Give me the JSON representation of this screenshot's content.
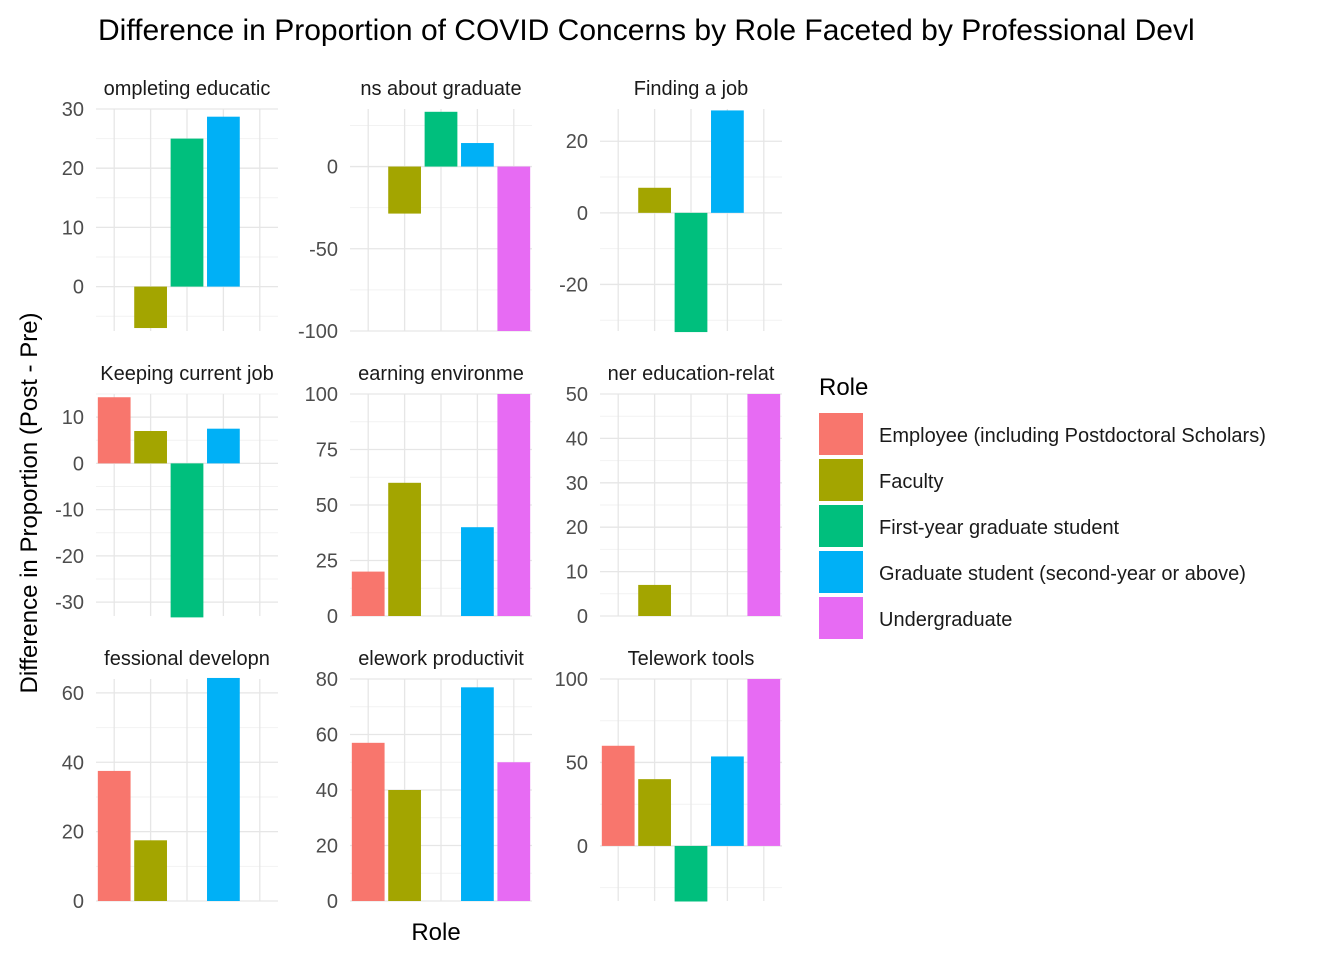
{
  "chart_data": {
    "type": "bar",
    "title": "Difference in Proportion of COVID Concerns by Role Faceted by Professional Devl",
    "xlabel": "Role",
    "ylabel": "Difference in Proportion (Post - Pre)",
    "legend": {
      "title": "Role",
      "placement": "right",
      "entries": [
        "Employee (including Postdoctoral Scholars)",
        "Faculty",
        "First-year graduate student",
        "Graduate student (second-year or above)",
        "Undergraduate"
      ]
    },
    "colors": [
      "#F8766D",
      "#A3A500",
      "#00BF7D",
      "#00B0F6",
      "#E76BF3"
    ],
    "grid": true,
    "facets": [
      {
        "label": "ompleting educatic",
        "ylim": [
          -7.5,
          30
        ],
        "yticks": [
          0,
          10,
          20,
          30
        ],
        "values": [
          null,
          -7,
          25,
          28.7,
          null
        ]
      },
      {
        "label": "ns about graduate",
        "ylim": [
          -100,
          35
        ],
        "yticks": [
          -100,
          -50,
          0
        ],
        "values": [
          null,
          -28.6,
          33.3,
          14.3,
          -100
        ]
      },
      {
        "label": "Finding a job",
        "ylim": [
          -33,
          29
        ],
        "yticks": [
          -20,
          0,
          20
        ],
        "values": [
          null,
          7,
          -33.3,
          28.6,
          null
        ]
      },
      {
        "label": "Keeping current job",
        "ylim": [
          -33,
          15
        ],
        "yticks": [
          -30,
          -20,
          -10,
          0,
          10
        ],
        "values": [
          14.3,
          7,
          -33.3,
          7.5,
          null
        ]
      },
      {
        "label": "earning environme",
        "ylim": [
          0,
          100
        ],
        "yticks": [
          0,
          25,
          50,
          75,
          100
        ],
        "values": [
          20,
          60,
          null,
          40,
          100
        ]
      },
      {
        "label": "ner education-relat",
        "ylim": [
          0,
          50
        ],
        "yticks": [
          0,
          10,
          20,
          30,
          40,
          50
        ],
        "values": [
          null,
          7,
          null,
          null,
          50
        ]
      },
      {
        "label": "fessional developn",
        "ylim": [
          0,
          64
        ],
        "yticks": [
          0,
          20,
          40,
          60
        ],
        "values": [
          37.5,
          17.5,
          null,
          64.3,
          null
        ]
      },
      {
        "label": "elework productivit",
        "ylim": [
          0,
          80
        ],
        "yticks": [
          0,
          20,
          40,
          60,
          80
        ],
        "values": [
          57,
          40,
          null,
          77,
          50
        ]
      },
      {
        "label": "Telework tools",
        "ylim": [
          -33,
          100
        ],
        "yticks": [
          0,
          50,
          100
        ],
        "values": [
          60,
          40,
          -33.3,
          53.6,
          100
        ]
      }
    ]
  }
}
